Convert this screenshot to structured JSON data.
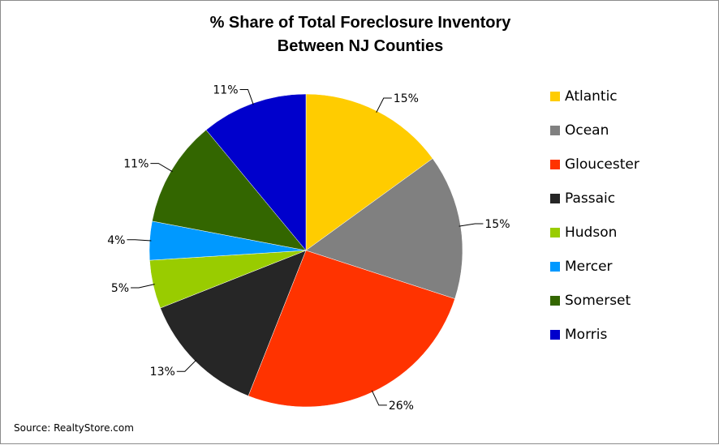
{
  "chart_data": {
    "type": "pie",
    "title": [
      "% Share of Total Foreclosure Inventory",
      "Between NJ Counties"
    ],
    "categories": [
      "Atlantic",
      "Ocean",
      "Gloucester",
      "Passaic",
      "Hudson",
      "Mercer",
      "Somerset",
      "Morris"
    ],
    "values": [
      15,
      15,
      26,
      13,
      5,
      4,
      11,
      11
    ],
    "labels": [
      "15%",
      "15%",
      "26%",
      "13%",
      "5%",
      "4%",
      "11%",
      "11%"
    ],
    "colors": [
      "#FFCC00",
      "#808080",
      "#FF3300",
      "#262626",
      "#99CC00",
      "#0099FF",
      "#336600",
      "#0000CC"
    ],
    "legend_position": "right",
    "source": "Source: RealtyStore.com"
  }
}
